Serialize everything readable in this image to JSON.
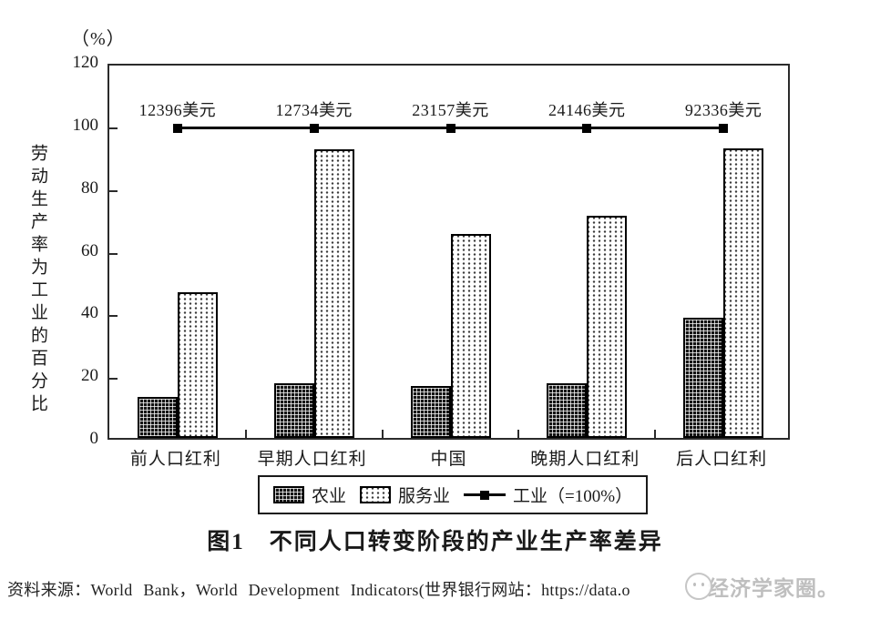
{
  "chart_data": {
    "type": "bar",
    "title": "图1　不同人口转变阶段的产业生产率差异",
    "unit_label": "（%）",
    "ylabel": "劳动生产率为工业的百分比",
    "ylim": [
      0,
      120
    ],
    "yticks": [
      0,
      20,
      40,
      60,
      80,
      100,
      120
    ],
    "grid": false,
    "categories": [
      "前人口红利",
      "早期人口红利",
      "中国",
      "晚期人口红利",
      "后人口红利"
    ],
    "series": [
      {
        "name": "农业",
        "type": "bar",
        "pattern": "dark-grid-hatch",
        "values": [
          13,
          17.5,
          16.5,
          17.5,
          38.5
        ]
      },
      {
        "name": "服务业",
        "type": "bar",
        "pattern": "white-dotted",
        "values": [
          46.5,
          92,
          65,
          71,
          92.5
        ]
      },
      {
        "name": "工业（=100%）",
        "type": "line-with-square-markers",
        "values": [
          100,
          100,
          100,
          100,
          100
        ]
      }
    ],
    "point_labels": [
      "12396美元",
      "12734美元",
      "23157美元",
      "24146美元",
      "92336美元"
    ],
    "legend": [
      "农业",
      "服务业",
      "工业（=100%）"
    ],
    "legend_position": "bottom",
    "colors": {
      "bar_dark": "#141414",
      "bar_light": "#ffffff",
      "dot": "#3a3a3a",
      "line": "#000000",
      "text": "#1a1a1a"
    }
  },
  "source_note": "资料来源：World Bank，World Development Indicators(世界银行网站：https://data.o",
  "watermark": {
    "text": "经济学家圈。"
  }
}
